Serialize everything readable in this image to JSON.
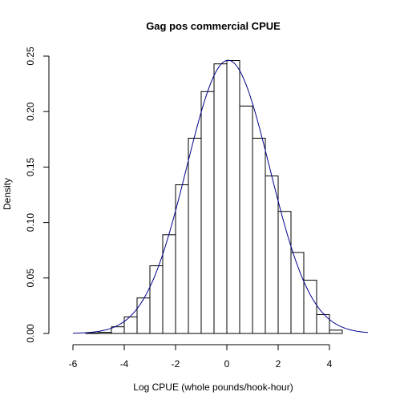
{
  "chart_data": {
    "type": "bar",
    "title": "Gag pos commercial CPUE",
    "xlabel": "Log CPUE (whole pounds/hook-hour)",
    "ylabel": "Density",
    "xlim": [
      -6.5,
      5.5
    ],
    "ylim": [
      0,
      0.25
    ],
    "x_ticks": [
      -6,
      -4,
      -2,
      0,
      2,
      4
    ],
    "x_tick_labels": [
      "-6",
      "-4",
      "-2",
      "0",
      "2",
      "4"
    ],
    "y_ticks": [
      0,
      0.05,
      0.1,
      0.15,
      0.2,
      0.25
    ],
    "y_tick_labels": [
      "0.00",
      "0.05",
      "0.10",
      "0.15",
      "0.20",
      "0.25"
    ],
    "bin_width": 0.5,
    "bins": [
      {
        "x0": -5.5,
        "x1": -5.0,
        "density": 0.0005
      },
      {
        "x0": -5.0,
        "x1": -4.5,
        "density": 0.001
      },
      {
        "x0": -4.5,
        "x1": -4.0,
        "density": 0.006
      },
      {
        "x0": -4.0,
        "x1": -3.5,
        "density": 0.015
      },
      {
        "x0": -3.5,
        "x1": -3.0,
        "density": 0.032
      },
      {
        "x0": -3.0,
        "x1": -2.5,
        "density": 0.061
      },
      {
        "x0": -2.5,
        "x1": -2.0,
        "density": 0.089
      },
      {
        "x0": -2.0,
        "x1": -1.5,
        "density": 0.134
      },
      {
        "x0": -1.5,
        "x1": -1.0,
        "density": 0.176
      },
      {
        "x0": -1.0,
        "x1": -0.5,
        "density": 0.218
      },
      {
        "x0": -0.5,
        "x1": 0.0,
        "density": 0.243
      },
      {
        "x0": 0.0,
        "x1": 0.5,
        "density": 0.246
      },
      {
        "x0": 0.5,
        "x1": 1.0,
        "density": 0.205
      },
      {
        "x0": 1.0,
        "x1": 1.5,
        "density": 0.176
      },
      {
        "x0": 1.5,
        "x1": 2.0,
        "density": 0.142
      },
      {
        "x0": 2.0,
        "x1": 2.5,
        "density": 0.11
      },
      {
        "x0": 2.5,
        "x1": 3.0,
        "density": 0.073
      },
      {
        "x0": 3.0,
        "x1": 3.5,
        "density": 0.048
      },
      {
        "x0": 3.5,
        "x1": 4.0,
        "density": 0.017
      },
      {
        "x0": 4.0,
        "x1": 4.5,
        "density": 0.003
      }
    ],
    "curve": {
      "type": "normal-density",
      "mean": 0.05,
      "sd": 1.62,
      "x_range": [
        -6.0,
        5.5
      ],
      "color": "#00008B"
    },
    "bar_fill": "#ffffff",
    "bar_stroke": "#000000",
    "grid": false,
    "legend": "none"
  }
}
